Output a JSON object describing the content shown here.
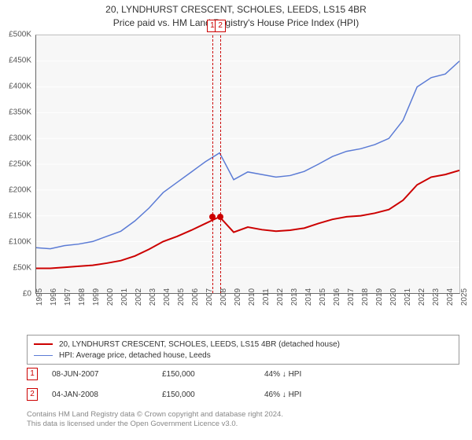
{
  "title": {
    "line1": "20, LYNDHURST CRESCENT, SCHOLES, LEEDS, LS15 4BR",
    "line2": "Price paid vs. HM Land Registry's House Price Index (HPI)"
  },
  "chart": {
    "type": "line",
    "background_color": "#f7f7f7",
    "grid_color": "#ffffff",
    "ylim": [
      0,
      500000
    ],
    "ytick_step": 50000,
    "y_labels": [
      "£0",
      "£50K",
      "£100K",
      "£150K",
      "£200K",
      "£250K",
      "£300K",
      "£350K",
      "£400K",
      "£450K",
      "£500K"
    ],
    "xlim": [
      1995,
      2025
    ],
    "x_labels": [
      "1995",
      "1996",
      "1997",
      "1998",
      "1999",
      "2000",
      "2001",
      "2002",
      "2003",
      "2004",
      "2005",
      "2006",
      "2007",
      "2008",
      "2009",
      "2010",
      "2011",
      "2012",
      "2013",
      "2014",
      "2015",
      "2016",
      "2017",
      "2018",
      "2019",
      "2020",
      "2021",
      "2022",
      "2023",
      "2024",
      "2025"
    ],
    "series": [
      {
        "name": "property",
        "color": "#cc0000",
        "line_width": 2,
        "values": [
          48,
          48,
          50,
          52,
          54,
          58,
          63,
          72,
          85,
          100,
          110,
          122,
          135,
          148,
          118,
          128,
          123,
          120,
          122,
          126,
          135,
          143,
          148,
          150,
          155,
          162,
          180,
          210,
          225,
          230,
          238
        ]
      },
      {
        "name": "hpi",
        "color": "#5b7bd5",
        "line_width": 1.5,
        "values": [
          88,
          86,
          92,
          95,
          100,
          110,
          120,
          140,
          165,
          195,
          215,
          235,
          255,
          272,
          220,
          235,
          230,
          225,
          228,
          236,
          250,
          265,
          275,
          280,
          288,
          300,
          335,
          400,
          418,
          425,
          450
        ]
      }
    ],
    "markers": [
      {
        "label": "1",
        "x_year": 2007.44,
        "y_value": 150000
      },
      {
        "label": "2",
        "x_year": 2008.01,
        "y_value": 150000
      }
    ],
    "marker_color": "#cc0000"
  },
  "legend": {
    "items": [
      {
        "color": "#cc0000",
        "width": 2,
        "label": "20, LYNDHURST CRESCENT, SCHOLES, LEEDS, LS15 4BR (detached house)"
      },
      {
        "color": "#5b7bd5",
        "width": 1.5,
        "label": "HPI: Average price, detached house, Leeds"
      }
    ]
  },
  "sales": [
    {
      "badge": "1",
      "date": "08-JUN-2007",
      "price": "£150,000",
      "delta": "44% ↓ HPI"
    },
    {
      "badge": "2",
      "date": "04-JAN-2008",
      "price": "£150,000",
      "delta": "46% ↓ HPI"
    }
  ],
  "footer": {
    "line1": "Contains HM Land Registry data © Crown copyright and database right 2024.",
    "line2": "This data is licensed under the Open Government Licence v3.0."
  }
}
